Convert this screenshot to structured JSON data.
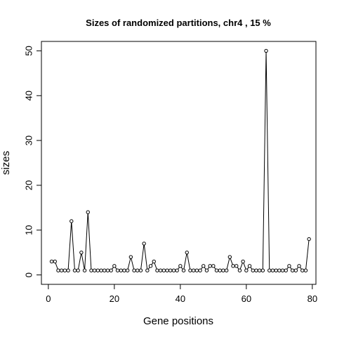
{
  "chart_data": {
    "type": "line",
    "title": "Sizes of randomized partitions, chr4 , 15 %",
    "xlabel": "Gene positions",
    "ylabel": "sizes",
    "xlim": [
      -2.1,
      81.1
    ],
    "ylim": [
      -2.1,
      52.1
    ],
    "x_ticks": [
      0,
      20,
      40,
      60,
      80
    ],
    "y_ticks": [
      0,
      10,
      20,
      30,
      40,
      50
    ],
    "grid": false,
    "legend": "none",
    "point_style": "open-circle",
    "x": [
      1,
      2,
      3,
      4,
      5,
      6,
      7,
      8,
      9,
      10,
      11,
      12,
      13,
      14,
      15,
      16,
      17,
      18,
      19,
      20,
      21,
      22,
      23,
      24,
      25,
      26,
      27,
      28,
      29,
      30,
      31,
      32,
      33,
      34,
      35,
      36,
      37,
      38,
      39,
      40,
      41,
      42,
      43,
      44,
      45,
      46,
      47,
      48,
      49,
      50,
      51,
      52,
      53,
      54,
      55,
      56,
      57,
      58,
      59,
      60,
      61,
      62,
      63,
      64,
      65,
      66,
      67,
      68,
      69,
      70,
      71,
      72,
      73,
      74,
      75,
      76,
      77,
      78,
      79
    ],
    "values": [
      3,
      3,
      1,
      1,
      1,
      1,
      12,
      1,
      1,
      5,
      1,
      14,
      1,
      1,
      1,
      1,
      1,
      1,
      1,
      2,
      1,
      1,
      1,
      1,
      4,
      1,
      1,
      1,
      7,
      1,
      2,
      3,
      1,
      1,
      1,
      1,
      1,
      1,
      1,
      2,
      1,
      5,
      1,
      1,
      1,
      1,
      2,
      1,
      2,
      2,
      1,
      1,
      1,
      1,
      4,
      2,
      2,
      1,
      3,
      1,
      2,
      1,
      1,
      1,
      1,
      50,
      1,
      1,
      1,
      1,
      1,
      1,
      2,
      1,
      1,
      2,
      1,
      1,
      8
    ]
  }
}
